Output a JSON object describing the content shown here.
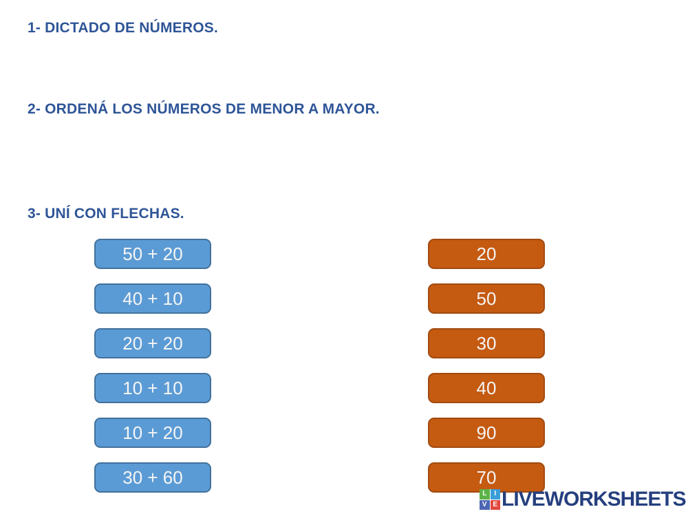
{
  "headings": {
    "exercise1": "1- DICTADO DE NÚMEROS.",
    "exercise2": "2- ORDENÁ LOS NÚMEROS DE MENOR A MAYOR.",
    "exercise3": "3- UNÍ CON FLECHAS."
  },
  "match_exercise": {
    "left_items": [
      "50 + 20",
      "40 + 10",
      "20 + 20",
      "10 + 10",
      "10 + 20",
      "30 + 60"
    ],
    "right_items": [
      "20",
      "50",
      "30",
      "40",
      "90",
      "70"
    ]
  },
  "colors": {
    "heading_text": "#2e5597",
    "sum_box_fill": "#5b9bd5",
    "sum_box_border": "#41719c",
    "result_box_fill": "#c55a11",
    "result_box_border": "#a04a10",
    "box_text": "#f5f5f5",
    "logo_text": "#253f7e",
    "logo_tile_l": "#5cb348",
    "logo_tile_i": "#3b9ed8",
    "logo_tile_v": "#4d66b3",
    "logo_tile_e": "#e2483d"
  },
  "logo": {
    "text": "LIVEWORKSHEETS",
    "tiles": [
      {
        "letter": "L"
      },
      {
        "letter": "I"
      },
      {
        "letter": "V"
      },
      {
        "letter": "E"
      }
    ]
  }
}
